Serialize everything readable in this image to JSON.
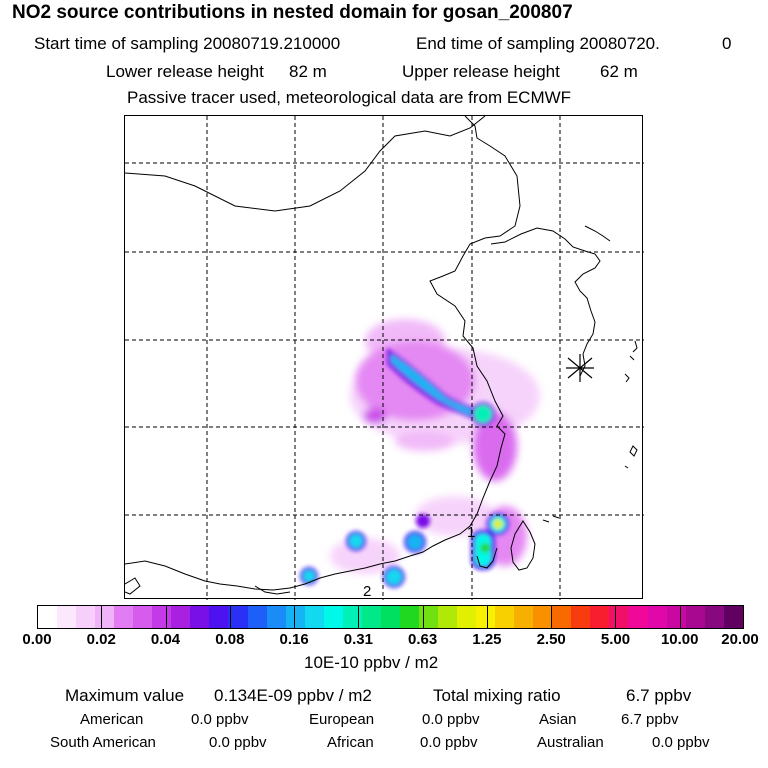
{
  "header": {
    "title": "NO2 source contributions in nested domain for gosan_200807",
    "start_label": "Start time of sampling 20080719.210000",
    "end_label": "End time of sampling 20080720.",
    "end_hour": "0",
    "lower_label": "Lower release height",
    "lower_value": "82 m",
    "upper_label": "Upper release height",
    "upper_value": "62 m",
    "note": "Passive tracer used, meteorological data are from ECMWF"
  },
  "map": {
    "station_marker": "receptor-star-icon",
    "point_labels": [
      "1",
      "2"
    ]
  },
  "colorbar": {
    "unit": "10E-10 ppbv / m2",
    "ticks": [
      "0.00",
      "0.02",
      "0.04",
      "0.08",
      "0.16",
      "0.31",
      "0.63",
      "1.25",
      "2.50",
      "5.00",
      "10.00",
      "20.00"
    ],
    "colors": [
      "#ffffff",
      "#fbe8fd",
      "#f6cffb",
      "#f0b2f8",
      "#e27cf2",
      "#d65cee",
      "#c43ae8",
      "#a820e0",
      "#7a10e8",
      "#4c12f0",
      "#2a30f5",
      "#1c60f8",
      "#1a8cf8",
      "#16b4f4",
      "#12d8f0",
      "#00f8e8",
      "#00f0b8",
      "#00e888",
      "#00e060",
      "#20d820",
      "#70e010",
      "#b0e808",
      "#e0f000",
      "#f8f000",
      "#f8d000",
      "#f8b000",
      "#f89000",
      "#f86a00",
      "#f83c10",
      "#f81e30",
      "#f01068",
      "#f00898",
      "#e008a8",
      "#c808a0",
      "#a80890",
      "#880880",
      "#600060"
    ]
  },
  "footer": {
    "max_label": "Maximum value",
    "max_value": "0.134E-09 ppbv / m2",
    "total_label": "Total mixing ratio",
    "total_value": "6.7 ppbv",
    "regions": [
      {
        "name": "American",
        "value": "0.0 ppbv"
      },
      {
        "name": "European",
        "value": "0.0 ppbv"
      },
      {
        "name": "Asian",
        "value": "6.7 ppbv"
      },
      {
        "name": "South American",
        "value": "0.0 ppbv"
      },
      {
        "name": "African",
        "value": "0.0 ppbv"
      },
      {
        "name": "Australian",
        "value": "0.0 ppbv"
      }
    ]
  }
}
